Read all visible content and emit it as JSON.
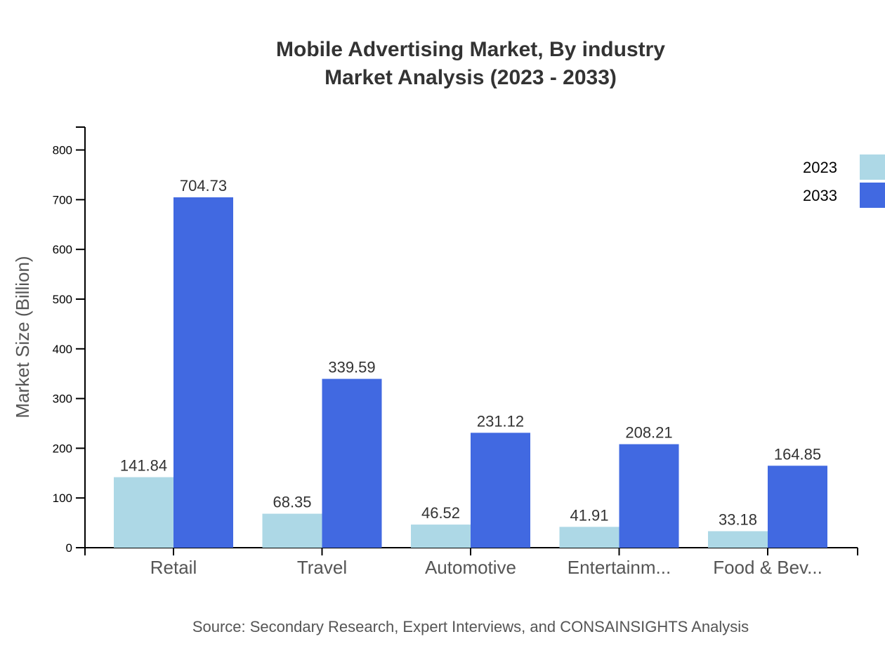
{
  "chart_data": {
    "type": "bar",
    "title": "Mobile Advertising Market, By industry",
    "subtitle": "Market Analysis (2023 - 2033)",
    "xlabel": "",
    "ylabel": "Market Size (Billion)",
    "ylim": [
      0,
      846
    ],
    "yticks": [
      0,
      100,
      200,
      300,
      400,
      500,
      600,
      700,
      800
    ],
    "categories": [
      "Retail",
      "Travel",
      "Automotive",
      "Entertainm...",
      "Food & Bev..."
    ],
    "series": [
      {
        "name": "2023",
        "color": "#add8e6",
        "values": [
          141.84,
          68.35,
          46.52,
          41.91,
          33.18
        ]
      },
      {
        "name": "2033",
        "color": "#4169e1",
        "values": [
          704.73,
          339.59,
          231.12,
          208.21,
          164.85
        ]
      }
    ],
    "legend_position": "top-right",
    "grid": false,
    "source": "Source: Secondary Research, Expert Interviews, and CONSAINSIGHTS Analysis"
  }
}
